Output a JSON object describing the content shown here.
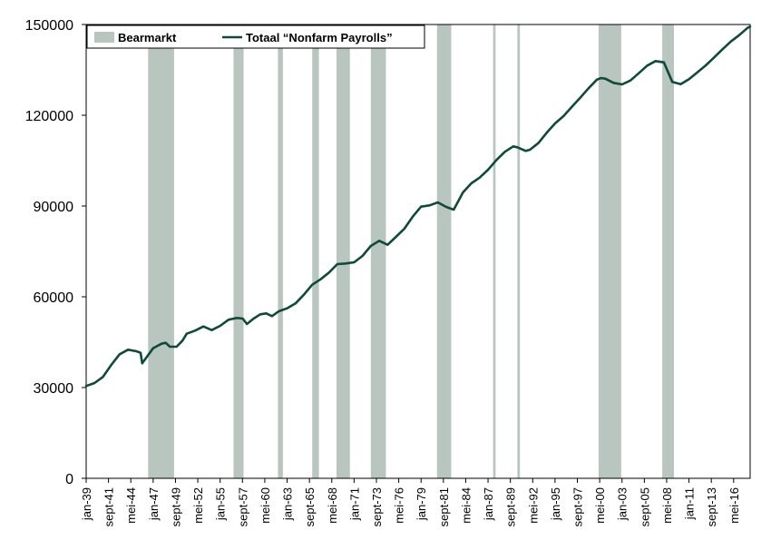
{
  "chart_data": {
    "type": "line",
    "title": "",
    "xlabel": "",
    "ylabel": "",
    "ylim": [
      0,
      150000
    ],
    "grid": false,
    "legend_position": "top",
    "colors": {
      "line": "#0f4a3a",
      "bearmarket": "#b9c6bf"
    },
    "y_ticks": [
      "0",
      "30000",
      "60000",
      "90000",
      "120000",
      "150000"
    ],
    "x_tick_labels": [
      "jan-39",
      "sept-41",
      "mei-44",
      "jan-47",
      "sept-49",
      "mei-52",
      "jan-55",
      "sept-57",
      "mei-60",
      "jan-63",
      "sept-65",
      "mei-68",
      "jan-71",
      "sept-73",
      "mei-76",
      "jan-79",
      "sept-81",
      "mei-84",
      "jan-87",
      "sept-89",
      "mei-92",
      "jan-95",
      "sept-97",
      "mei-00",
      "jan-03",
      "sept-05",
      "mei-08",
      "jan-11",
      "sept-13",
      "mei-16"
    ],
    "legend": {
      "bear": "Bearmarkt",
      "line": "Totaal “Nonfarm Payrolls”"
    },
    "bear_markets": [
      {
        "start": 1946.4,
        "end": 1949.5
      },
      {
        "start": 1956.6,
        "end": 1957.8
      },
      {
        "start": 1961.9,
        "end": 1962.5
      },
      {
        "start": 1966.0,
        "end": 1966.8
      },
      {
        "start": 1968.9,
        "end": 1970.5
      },
      {
        "start": 1973.0,
        "end": 1974.8
      },
      {
        "start": 1980.9,
        "end": 1982.6
      },
      {
        "start": 1987.6,
        "end": 1987.9
      },
      {
        "start": 1990.5,
        "end": 1990.8
      },
      {
        "start": 2000.2,
        "end": 2002.9
      },
      {
        "start": 2007.8,
        "end": 2009.2
      }
    ],
    "series": [
      {
        "name": "Totaal “Nonfarm Payrolls”",
        "x": [
          1939.0,
          1940.0,
          1941.0,
          1942.0,
          1943.0,
          1944.0,
          1945.0,
          1945.5,
          1945.7,
          1946.2,
          1947.0,
          1948.0,
          1948.5,
          1949.0,
          1949.8,
          1950.5,
          1951.0,
          1952.0,
          1953.0,
          1954.0,
          1955.0,
          1956.0,
          1957.0,
          1957.7,
          1958.2,
          1959.0,
          1959.8,
          1960.5,
          1961.2,
          1962.0,
          1963.0,
          1964.0,
          1965.0,
          1966.0,
          1967.0,
          1968.0,
          1969.0,
          1970.0,
          1971.0,
          1972.0,
          1973.0,
          1974.0,
          1975.0,
          1976.0,
          1977.0,
          1978.0,
          1979.0,
          1980.0,
          1981.0,
          1982.0,
          1982.9,
          1984.0,
          1985.0,
          1986.0,
          1987.0,
          1988.0,
          1989.0,
          1990.0,
          1990.5,
          1991.5,
          1992.0,
          1993.0,
          1994.0,
          1995.0,
          1996.0,
          1997.0,
          1998.0,
          1999.0,
          2000.0,
          2000.5,
          2001.0,
          2002.0,
          2003.0,
          2004.0,
          2005.0,
          2006.0,
          2007.0,
          2008.0,
          2009.0,
          2010.0,
          2011.0,
          2012.0,
          2013.0,
          2014.0,
          2015.0,
          2016.0,
          2017.0,
          2018.0,
          2018.3
        ],
        "values": [
          30500,
          31500,
          33500,
          37500,
          41000,
          42500,
          42000,
          41500,
          38000,
          40000,
          43000,
          44500,
          44800,
          43500,
          43500,
          45500,
          47800,
          48800,
          50200,
          49000,
          50400,
          52400,
          53000,
          52800,
          51000,
          52800,
          54200,
          54500,
          53600,
          55200,
          56200,
          57800,
          60700,
          64000,
          65800,
          68000,
          70800,
          71000,
          71400,
          73500,
          76800,
          78500,
          77200,
          79800,
          82500,
          86500,
          89800,
          90200,
          91200,
          89700,
          88800,
          94500,
          97500,
          99400,
          102000,
          105200,
          107900,
          109700,
          109400,
          108200,
          108600,
          110800,
          114200,
          117300,
          119700,
          122800,
          125800,
          128900,
          131800,
          132300,
          132100,
          130700,
          130200,
          131500,
          133900,
          136400,
          137900,
          137500,
          131000,
          130300,
          131900,
          134200,
          136500,
          139100,
          141800,
          144400,
          146500,
          148900,
          149300
        ]
      }
    ]
  }
}
